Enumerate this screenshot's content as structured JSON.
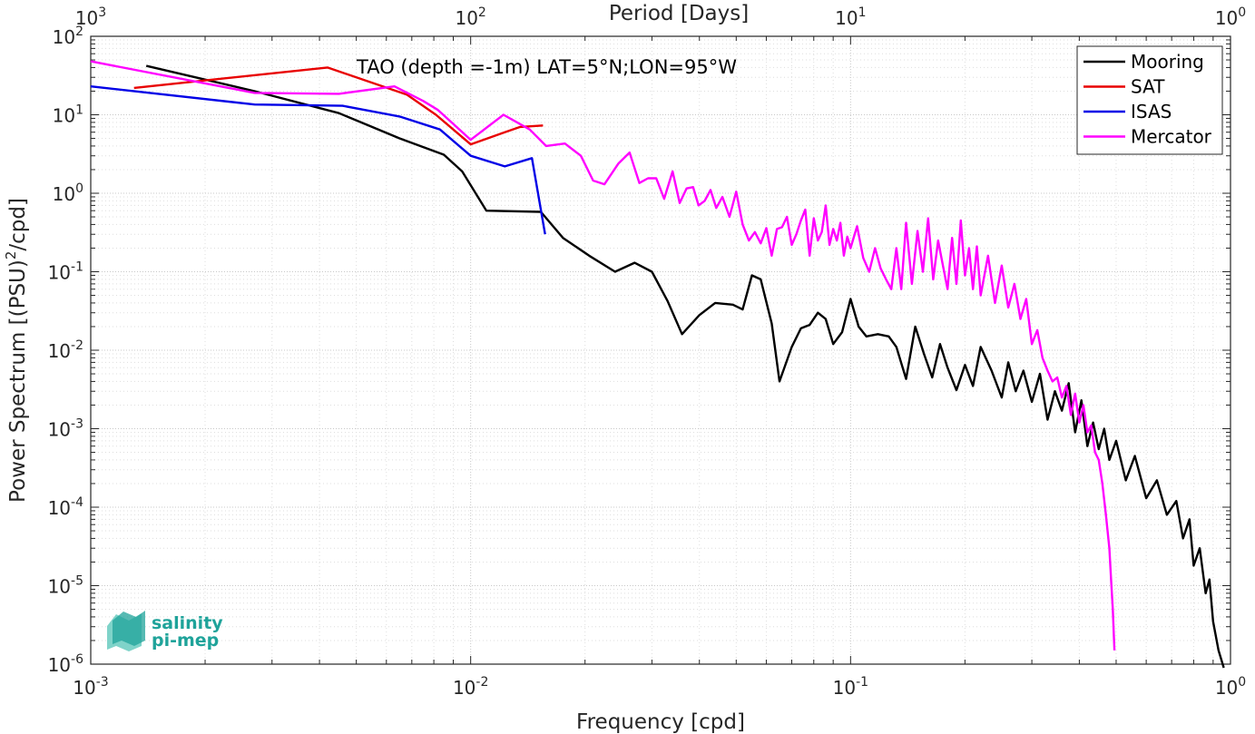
{
  "chart_data": {
    "type": "line",
    "title": "",
    "annotation": "TAO (depth =-1m) LAT=5°N;LON=95°W",
    "xlabel": "Frequency [cpd]",
    "ylabel_main": "Power Spectrum [(PSU)",
    "ylabel_sup": "2",
    "ylabel_tail": "/cpd]",
    "top_xlabel": "Period [Days]",
    "xscale": "log",
    "yscale": "log",
    "xlim": [
      0.001,
      1
    ],
    "ylim": [
      1e-06,
      100
    ],
    "grid": true,
    "legend_position": "top-right",
    "x_ticks": [
      {
        "value": 0.001,
        "base": "10",
        "exp": "-3"
      },
      {
        "value": 0.01,
        "base": "10",
        "exp": "-2"
      },
      {
        "value": 0.1,
        "base": "10",
        "exp": "-1"
      },
      {
        "value": 1,
        "base": "10",
        "exp": "0"
      }
    ],
    "y_ticks": [
      {
        "value": 1e-06,
        "base": "10",
        "exp": "-6"
      },
      {
        "value": 1e-05,
        "base": "10",
        "exp": "-5"
      },
      {
        "value": 0.0001,
        "base": "10",
        "exp": "-4"
      },
      {
        "value": 0.001,
        "base": "10",
        "exp": "-3"
      },
      {
        "value": 0.01,
        "base": "10",
        "exp": "-2"
      },
      {
        "value": 0.1,
        "base": "10",
        "exp": "-1"
      },
      {
        "value": 1,
        "base": "10",
        "exp": "0"
      },
      {
        "value": 10,
        "base": "10",
        "exp": "1"
      },
      {
        "value": 100,
        "base": "10",
        "exp": "2"
      }
    ],
    "top_ticks": [
      {
        "period": 1000,
        "base": "10",
        "exp": "3"
      },
      {
        "period": 100,
        "base": "10",
        "exp": "2"
      },
      {
        "period": 10,
        "base": "10",
        "exp": "1"
      },
      {
        "period": 1,
        "base": "10",
        "exp": "0"
      }
    ],
    "series": [
      {
        "name": "Mooring",
        "color": "#000000",
        "points": [
          [
            0.0014,
            42
          ],
          [
            0.0027,
            20
          ],
          [
            0.0045,
            10.5
          ],
          [
            0.0055,
            7
          ],
          [
            0.0065,
            5
          ],
          [
            0.0085,
            3.1
          ],
          [
            0.0095,
            1.9
          ],
          [
            0.011,
            0.6
          ],
          [
            0.0153,
            0.58
          ],
          [
            0.0175,
            0.27
          ],
          [
            0.0205,
            0.16
          ],
          [
            0.024,
            0.1
          ],
          [
            0.027,
            0.13
          ],
          [
            0.03,
            0.1
          ],
          [
            0.033,
            0.042
          ],
          [
            0.036,
            0.016
          ],
          [
            0.04,
            0.028
          ],
          [
            0.044,
            0.04
          ],
          [
            0.049,
            0.038
          ],
          [
            0.052,
            0.033
          ],
          [
            0.055,
            0.09
          ],
          [
            0.058,
            0.08
          ],
          [
            0.062,
            0.022
          ],
          [
            0.065,
            0.004
          ],
          [
            0.07,
            0.011
          ],
          [
            0.074,
            0.019
          ],
          [
            0.078,
            0.021
          ],
          [
            0.082,
            0.03
          ],
          [
            0.086,
            0.025
          ],
          [
            0.09,
            0.012
          ],
          [
            0.095,
            0.017
          ],
          [
            0.1,
            0.045
          ],
          [
            0.105,
            0.02
          ],
          [
            0.11,
            0.015
          ],
          [
            0.118,
            0.016
          ],
          [
            0.126,
            0.015
          ],
          [
            0.132,
            0.011
          ],
          [
            0.14,
            0.0043
          ],
          [
            0.148,
            0.02
          ],
          [
            0.156,
            0.009
          ],
          [
            0.164,
            0.0045
          ],
          [
            0.172,
            0.012
          ],
          [
            0.18,
            0.006
          ],
          [
            0.19,
            0.0031
          ],
          [
            0.2,
            0.0065
          ],
          [
            0.21,
            0.0035
          ],
          [
            0.22,
            0.011
          ],
          [
            0.235,
            0.0055
          ],
          [
            0.25,
            0.0025
          ],
          [
            0.26,
            0.007
          ],
          [
            0.272,
            0.003
          ],
          [
            0.285,
            0.0055
          ],
          [
            0.3,
            0.0022
          ],
          [
            0.315,
            0.005
          ],
          [
            0.33,
            0.0013
          ],
          [
            0.345,
            0.003
          ],
          [
            0.36,
            0.0017
          ],
          [
            0.375,
            0.0038
          ],
          [
            0.39,
            0.0009
          ],
          [
            0.405,
            0.0023
          ],
          [
            0.42,
            0.0006
          ],
          [
            0.435,
            0.0012
          ],
          [
            0.45,
            0.00055
          ],
          [
            0.465,
            0.001
          ],
          [
            0.48,
            0.0004
          ],
          [
            0.5,
            0.0007
          ],
          [
            0.53,
            0.00022
          ],
          [
            0.56,
            0.00045
          ],
          [
            0.6,
            0.00013
          ],
          [
            0.64,
            0.00022
          ],
          [
            0.68,
            8e-05
          ],
          [
            0.72,
            0.00012
          ],
          [
            0.75,
            4e-05
          ],
          [
            0.78,
            7e-05
          ],
          [
            0.8,
            1.8e-05
          ],
          [
            0.83,
            3e-05
          ],
          [
            0.86,
            8e-06
          ],
          [
            0.88,
            1.2e-05
          ],
          [
            0.9,
            3.5e-06
          ],
          [
            0.93,
            1.5e-06
          ],
          [
            0.96,
            9e-07
          ]
        ]
      },
      {
        "name": "SAT",
        "color": "#e80000",
        "points": [
          [
            0.0013,
            22
          ],
          [
            0.0042,
            40
          ],
          [
            0.0068,
            18
          ],
          [
            0.0081,
            10
          ],
          [
            0.01,
            4.2
          ],
          [
            0.0123,
            6
          ],
          [
            0.0135,
            7
          ],
          [
            0.0155,
            7.3
          ]
        ]
      },
      {
        "name": "ISAS",
        "color": "#0000e6",
        "points": [
          [
            0.001,
            23
          ],
          [
            0.0027,
            13.5
          ],
          [
            0.0046,
            13
          ],
          [
            0.0065,
            9.5
          ],
          [
            0.0083,
            6.5
          ],
          [
            0.01,
            3
          ],
          [
            0.0123,
            2.2
          ],
          [
            0.0145,
            2.8
          ],
          [
            0.0157,
            0.3
          ]
        ]
      },
      {
        "name": "Mercator",
        "color": "#ff00ff",
        "points": [
          [
            0.001,
            48
          ],
          [
            0.0027,
            19
          ],
          [
            0.0045,
            18.5
          ],
          [
            0.0063,
            23
          ],
          [
            0.0075,
            15
          ],
          [
            0.0082,
            11.5
          ],
          [
            0.01,
            4.8
          ],
          [
            0.0122,
            10
          ],
          [
            0.0143,
            6.5
          ],
          [
            0.0158,
            4
          ],
          [
            0.0177,
            4.3
          ],
          [
            0.0195,
            3
          ],
          [
            0.021,
            1.45
          ],
          [
            0.0225,
            1.3
          ],
          [
            0.0245,
            2.4
          ],
          [
            0.0262,
            3.3
          ],
          [
            0.0278,
            1.35
          ],
          [
            0.0293,
            1.55
          ],
          [
            0.0308,
            1.55
          ],
          [
            0.0323,
            0.85
          ],
          [
            0.034,
            1.9
          ],
          [
            0.0355,
            0.75
          ],
          [
            0.037,
            1.15
          ],
          [
            0.0385,
            1.2
          ],
          [
            0.0398,
            0.7
          ],
          [
            0.0413,
            0.8
          ],
          [
            0.0428,
            1.1
          ],
          [
            0.0443,
            0.65
          ],
          [
            0.046,
            0.9
          ],
          [
            0.048,
            0.5
          ],
          [
            0.05,
            1.05
          ],
          [
            0.052,
            0.4
          ],
          [
            0.054,
            0.25
          ],
          [
            0.056,
            0.32
          ],
          [
            0.058,
            0.23
          ],
          [
            0.06,
            0.36
          ],
          [
            0.062,
            0.16
          ],
          [
            0.064,
            0.35
          ],
          [
            0.066,
            0.37
          ],
          [
            0.068,
            0.5
          ],
          [
            0.07,
            0.22
          ],
          [
            0.072,
            0.3
          ],
          [
            0.074,
            0.45
          ],
          [
            0.076,
            0.62
          ],
          [
            0.078,
            0.16
          ],
          [
            0.08,
            0.48
          ],
          [
            0.082,
            0.25
          ],
          [
            0.084,
            0.32
          ],
          [
            0.086,
            0.7
          ],
          [
            0.088,
            0.22
          ],
          [
            0.09,
            0.35
          ],
          [
            0.092,
            0.25
          ],
          [
            0.094,
            0.42
          ],
          [
            0.096,
            0.16
          ],
          [
            0.098,
            0.28
          ],
          [
            0.1,
            0.2
          ],
          [
            0.104,
            0.38
          ],
          [
            0.108,
            0.15
          ],
          [
            0.112,
            0.1
          ],
          [
            0.116,
            0.2
          ],
          [
            0.12,
            0.11
          ],
          [
            0.124,
            0.08
          ],
          [
            0.128,
            0.06
          ],
          [
            0.132,
            0.2
          ],
          [
            0.136,
            0.06
          ],
          [
            0.14,
            0.42
          ],
          [
            0.145,
            0.07
          ],
          [
            0.15,
            0.33
          ],
          [
            0.155,
            0.1
          ],
          [
            0.16,
            0.48
          ],
          [
            0.165,
            0.08
          ],
          [
            0.17,
            0.25
          ],
          [
            0.175,
            0.12
          ],
          [
            0.18,
            0.06
          ],
          [
            0.185,
            0.27
          ],
          [
            0.19,
            0.07
          ],
          [
            0.195,
            0.45
          ],
          [
            0.2,
            0.09
          ],
          [
            0.205,
            0.2
          ],
          [
            0.21,
            0.06
          ],
          [
            0.215,
            0.21
          ],
          [
            0.22,
            0.05
          ],
          [
            0.23,
            0.16
          ],
          [
            0.24,
            0.04
          ],
          [
            0.25,
            0.12
          ],
          [
            0.26,
            0.035
          ],
          [
            0.27,
            0.07
          ],
          [
            0.28,
            0.025
          ],
          [
            0.29,
            0.045
          ],
          [
            0.3,
            0.012
          ],
          [
            0.31,
            0.018
          ],
          [
            0.32,
            0.008
          ],
          [
            0.33,
            0.0055
          ],
          [
            0.34,
            0.004
          ],
          [
            0.35,
            0.0045
          ],
          [
            0.36,
            0.0025
          ],
          [
            0.37,
            0.0035
          ],
          [
            0.38,
            0.0015
          ],
          [
            0.39,
            0.0028
          ],
          [
            0.4,
            0.0012
          ],
          [
            0.41,
            0.002
          ],
          [
            0.42,
            0.0009
          ],
          [
            0.43,
            0.0011
          ],
          [
            0.44,
            0.0005
          ],
          [
            0.45,
            0.0004
          ],
          [
            0.46,
            0.0002
          ],
          [
            0.47,
            8e-05
          ],
          [
            0.48,
            3e-05
          ],
          [
            0.485,
            1.2e-05
          ],
          [
            0.49,
            5e-06
          ],
          [
            0.495,
            1.5e-06
          ]
        ]
      }
    ]
  },
  "logo": {
    "line1": "salinity",
    "line2": "pi-mep"
  }
}
